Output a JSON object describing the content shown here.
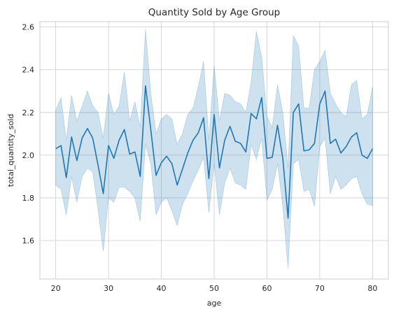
{
  "chart_data": {
    "type": "line",
    "title": "Quantity Sold by Age Group",
    "xlabel": "age",
    "ylabel": "total_quantity_sold",
    "xlim": [
      17,
      83
    ],
    "ylim": [
      1.42,
      2.625
    ],
    "xticks": [
      20,
      30,
      40,
      50,
      60,
      70,
      80
    ],
    "yticks": [
      1.6,
      1.8,
      2.0,
      2.2,
      2.4,
      2.6
    ],
    "ytick_labels": [
      "1.6",
      "1.8",
      "2.0",
      "2.2",
      "2.4",
      "2.6"
    ],
    "grid": true,
    "series": [
      {
        "name": "total_quantity_sold",
        "color": "#1f77b4",
        "band_color": "#1f77b4",
        "x": [
          20,
          21,
          22,
          23,
          24,
          25,
          26,
          27,
          28,
          29,
          30,
          31,
          32,
          33,
          34,
          35,
          36,
          37,
          38,
          39,
          40,
          41,
          42,
          43,
          44,
          45,
          46,
          47,
          48,
          49,
          50,
          51,
          52,
          53,
          54,
          55,
          56,
          57,
          58,
          59,
          60,
          61,
          62,
          63,
          64,
          65,
          66,
          67,
          68,
          69,
          70,
          71,
          72,
          73,
          74,
          75,
          76,
          77,
          78,
          79,
          80
        ],
        "values": [
          2.03,
          2.045,
          1.895,
          2.085,
          1.975,
          2.08,
          2.125,
          2.08,
          1.955,
          1.82,
          2.045,
          1.985,
          2.07,
          2.12,
          2.005,
          2.015,
          1.9,
          2.325,
          2.12,
          1.905,
          1.965,
          1.995,
          1.96,
          1.86,
          1.935,
          2.01,
          2.07,
          2.105,
          2.175,
          1.89,
          2.19,
          1.94,
          2.07,
          2.135,
          2.065,
          2.055,
          2.015,
          2.195,
          2.17,
          2.27,
          1.985,
          1.99,
          2.14,
          1.985,
          1.705,
          2.2,
          2.24,
          2.02,
          2.025,
          2.055,
          2.24,
          2.3,
          2.055,
          2.075,
          2.01,
          2.04,
          2.085,
          2.105,
          2.0,
          1.985,
          2.03
        ],
        "lower": [
          1.86,
          1.84,
          1.72,
          1.9,
          1.78,
          1.9,
          1.94,
          1.92,
          1.75,
          1.55,
          1.8,
          1.78,
          1.85,
          1.85,
          1.83,
          1.8,
          1.69,
          2.05,
          1.96,
          1.72,
          1.78,
          1.8,
          1.74,
          1.67,
          1.77,
          1.82,
          1.88,
          1.93,
          1.99,
          1.73,
          1.96,
          1.72,
          1.87,
          1.94,
          1.87,
          1.86,
          1.84,
          2.05,
          1.98,
          2.08,
          1.79,
          1.84,
          1.96,
          1.76,
          1.47,
          1.96,
          1.98,
          1.83,
          1.84,
          1.76,
          2.04,
          2.08,
          1.82,
          1.9,
          1.84,
          1.86,
          1.89,
          1.9,
          1.82,
          1.77,
          1.765
        ],
        "upper": [
          2.21,
          2.27,
          2.07,
          2.28,
          2.16,
          2.23,
          2.3,
          2.23,
          2.2,
          2.08,
          2.29,
          2.19,
          2.23,
          2.39,
          2.16,
          2.25,
          2.13,
          2.59,
          2.29,
          2.1,
          2.17,
          2.19,
          2.17,
          2.05,
          2.1,
          2.19,
          2.22,
          2.32,
          2.44,
          2.07,
          2.42,
          2.16,
          2.29,
          2.28,
          2.25,
          2.24,
          2.2,
          2.34,
          2.58,
          2.46,
          2.18,
          2.13,
          2.33,
          2.2,
          1.94,
          2.56,
          2.51,
          2.22,
          2.22,
          2.4,
          2.44,
          2.49,
          2.29,
          2.24,
          2.2,
          2.18,
          2.33,
          2.35,
          2.17,
          2.19,
          2.32
        ]
      }
    ]
  }
}
